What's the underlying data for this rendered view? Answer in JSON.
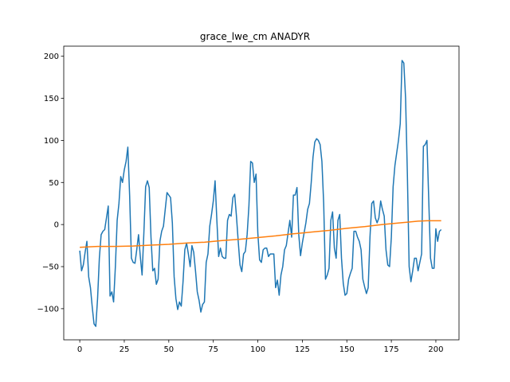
{
  "chart_data": {
    "type": "line",
    "title": "grace_lwe_cm ANADYR",
    "xlabel": "",
    "ylabel": "",
    "xlim": [
      -9,
      213
    ],
    "ylim": [
      -137,
      212
    ],
    "xticks": [
      0,
      25,
      50,
      75,
      100,
      125,
      150,
      175,
      200
    ],
    "yticks": [
      -100,
      -50,
      0,
      50,
      100,
      150,
      200
    ],
    "grid": false,
    "legend": "none",
    "series": [
      {
        "color": "#1f77b4",
        "points": [
          [
            0,
            -31
          ],
          [
            1,
            -55
          ],
          [
            2,
            -48
          ],
          [
            3,
            -33
          ],
          [
            4,
            -20
          ],
          [
            5,
            -62
          ],
          [
            6,
            -75
          ],
          [
            7,
            -98
          ],
          [
            8,
            -118
          ],
          [
            9,
            -121
          ],
          [
            10,
            -88
          ],
          [
            11,
            -40
          ],
          [
            12,
            -12
          ],
          [
            13,
            -8
          ],
          [
            14,
            -6
          ],
          [
            15,
            8
          ],
          [
            16,
            22
          ],
          [
            17,
            -85
          ],
          [
            18,
            -80
          ],
          [
            19,
            -92
          ],
          [
            20,
            -50
          ],
          [
            21,
            5
          ],
          [
            22,
            25
          ],
          [
            23,
            57
          ],
          [
            24,
            50
          ],
          [
            25,
            65
          ],
          [
            26,
            75
          ],
          [
            27,
            92
          ],
          [
            28,
            35
          ],
          [
            29,
            -40
          ],
          [
            30,
            -45
          ],
          [
            31,
            -46
          ],
          [
            32,
            -30
          ],
          [
            33,
            -12
          ],
          [
            34,
            -38
          ],
          [
            35,
            -60
          ],
          [
            36,
            -10
          ],
          [
            37,
            45
          ],
          [
            38,
            52
          ],
          [
            39,
            44
          ],
          [
            40,
            -15
          ],
          [
            41,
            -55
          ],
          [
            42,
            -52
          ],
          [
            43,
            -71
          ],
          [
            44,
            -65
          ],
          [
            45,
            -20
          ],
          [
            46,
            -8
          ],
          [
            47,
            -2
          ],
          [
            48,
            18
          ],
          [
            49,
            38
          ],
          [
            50,
            35
          ],
          [
            51,
            32
          ],
          [
            52,
            2
          ],
          [
            53,
            -62
          ],
          [
            54,
            -88
          ],
          [
            55,
            -101
          ],
          [
            56,
            -92
          ],
          [
            57,
            -97
          ],
          [
            58,
            -68
          ],
          [
            59,
            -30
          ],
          [
            60,
            -22
          ],
          [
            61,
            -35
          ],
          [
            62,
            -50
          ],
          [
            63,
            -25
          ],
          [
            64,
            -33
          ],
          [
            65,
            -55
          ],
          [
            66,
            -80
          ],
          [
            67,
            -90
          ],
          [
            68,
            -104
          ],
          [
            69,
            -95
          ],
          [
            70,
            -92
          ],
          [
            71,
            -45
          ],
          [
            72,
            -35
          ],
          [
            73,
            -2
          ],
          [
            74,
            12
          ],
          [
            75,
            28
          ],
          [
            76,
            52
          ],
          [
            77,
            5
          ],
          [
            78,
            -38
          ],
          [
            79,
            -28
          ],
          [
            80,
            -38
          ],
          [
            81,
            -40
          ],
          [
            82,
            -40
          ],
          [
            83,
            5
          ],
          [
            84,
            12
          ],
          [
            85,
            10
          ],
          [
            86,
            32
          ],
          [
            87,
            36
          ],
          [
            88,
            10
          ],
          [
            89,
            -20
          ],
          [
            90,
            -48
          ],
          [
            91,
            -56
          ],
          [
            92,
            -35
          ],
          [
            93,
            -32
          ],
          [
            94,
            -12
          ],
          [
            95,
            22
          ],
          [
            96,
            75
          ],
          [
            97,
            73
          ],
          [
            98,
            50
          ],
          [
            99,
            60
          ],
          [
            100,
            -10
          ],
          [
            101,
            -42
          ],
          [
            102,
            -45
          ],
          [
            103,
            -30
          ],
          [
            104,
            -28
          ],
          [
            105,
            -28
          ],
          [
            106,
            -38
          ],
          [
            107,
            -35
          ],
          [
            108,
            -35
          ],
          [
            109,
            -35
          ],
          [
            110,
            -75
          ],
          [
            111,
            -66
          ],
          [
            112,
            -84
          ],
          [
            113,
            -60
          ],
          [
            114,
            -50
          ],
          [
            115,
            -30
          ],
          [
            116,
            -25
          ],
          [
            117,
            -10
          ],
          [
            118,
            5
          ],
          [
            119,
            -15
          ],
          [
            120,
            35
          ],
          [
            121,
            35
          ],
          [
            122,
            44
          ],
          [
            123,
            -12
          ],
          [
            124,
            -37
          ],
          [
            125,
            -22
          ],
          [
            126,
            -10
          ],
          [
            127,
            2
          ],
          [
            128,
            18
          ],
          [
            129,
            25
          ],
          [
            130,
            50
          ],
          [
            131,
            80
          ],
          [
            132,
            98
          ],
          [
            133,
            102
          ],
          [
            134,
            100
          ],
          [
            135,
            95
          ],
          [
            136,
            75
          ],
          [
            137,
            25
          ],
          [
            138,
            -65
          ],
          [
            139,
            -60
          ],
          [
            140,
            -52
          ],
          [
            141,
            5
          ],
          [
            142,
            15
          ],
          [
            143,
            -28
          ],
          [
            144,
            -40
          ],
          [
            145,
            5
          ],
          [
            146,
            12
          ],
          [
            147,
            -40
          ],
          [
            148,
            -70
          ],
          [
            149,
            -84
          ],
          [
            150,
            -82
          ],
          [
            151,
            -65
          ],
          [
            152,
            -58
          ],
          [
            153,
            -52
          ],
          [
            154,
            -8
          ],
          [
            155,
            -8
          ],
          [
            156,
            -15
          ],
          [
            157,
            -20
          ],
          [
            158,
            -30
          ],
          [
            159,
            -65
          ],
          [
            160,
            -74
          ],
          [
            161,
            -82
          ],
          [
            162,
            -75
          ],
          [
            163,
            -15
          ],
          [
            164,
            25
          ],
          [
            165,
            28
          ],
          [
            166,
            8
          ],
          [
            167,
            2
          ],
          [
            168,
            8
          ],
          [
            169,
            28
          ],
          [
            170,
            18
          ],
          [
            171,
            10
          ],
          [
            172,
            -30
          ],
          [
            173,
            -48
          ],
          [
            174,
            -50
          ],
          [
            175,
            -15
          ],
          [
            176,
            45
          ],
          [
            177,
            70
          ],
          [
            178,
            85
          ],
          [
            179,
            100
          ],
          [
            180,
            120
          ],
          [
            181,
            195
          ],
          [
            182,
            192
          ],
          [
            183,
            150
          ],
          [
            184,
            60
          ],
          [
            185,
            -50
          ],
          [
            186,
            -68
          ],
          [
            187,
            -55
          ],
          [
            188,
            -40
          ],
          [
            189,
            -40
          ],
          [
            190,
            -55
          ],
          [
            191,
            -45
          ],
          [
            192,
            -35
          ],
          [
            193,
            93
          ],
          [
            194,
            95
          ],
          [
            195,
            100
          ],
          [
            196,
            30
          ],
          [
            197,
            -40
          ],
          [
            198,
            -52
          ],
          [
            199,
            -52
          ],
          [
            200,
            -5
          ],
          [
            201,
            -20
          ],
          [
            202,
            -8
          ],
          [
            203,
            -6
          ]
        ]
      },
      {
        "color": "#ff7f0e",
        "points": [
          [
            0,
            -27
          ],
          [
            10,
            -26
          ],
          [
            20,
            -26
          ],
          [
            30,
            -25.5
          ],
          [
            40,
            -24.5
          ],
          [
            50,
            -23.5
          ],
          [
            60,
            -22
          ],
          [
            70,
            -21
          ],
          [
            80,
            -19
          ],
          [
            90,
            -17.5
          ],
          [
            100,
            -15.5
          ],
          [
            110,
            -13.5
          ],
          [
            120,
            -11
          ],
          [
            130,
            -9
          ],
          [
            140,
            -7
          ],
          [
            150,
            -4.5
          ],
          [
            160,
            -2.5
          ],
          [
            170,
            0
          ],
          [
            180,
            2
          ],
          [
            190,
            4
          ],
          [
            195,
            4.5
          ],
          [
            203,
            4.5
          ]
        ]
      }
    ]
  }
}
